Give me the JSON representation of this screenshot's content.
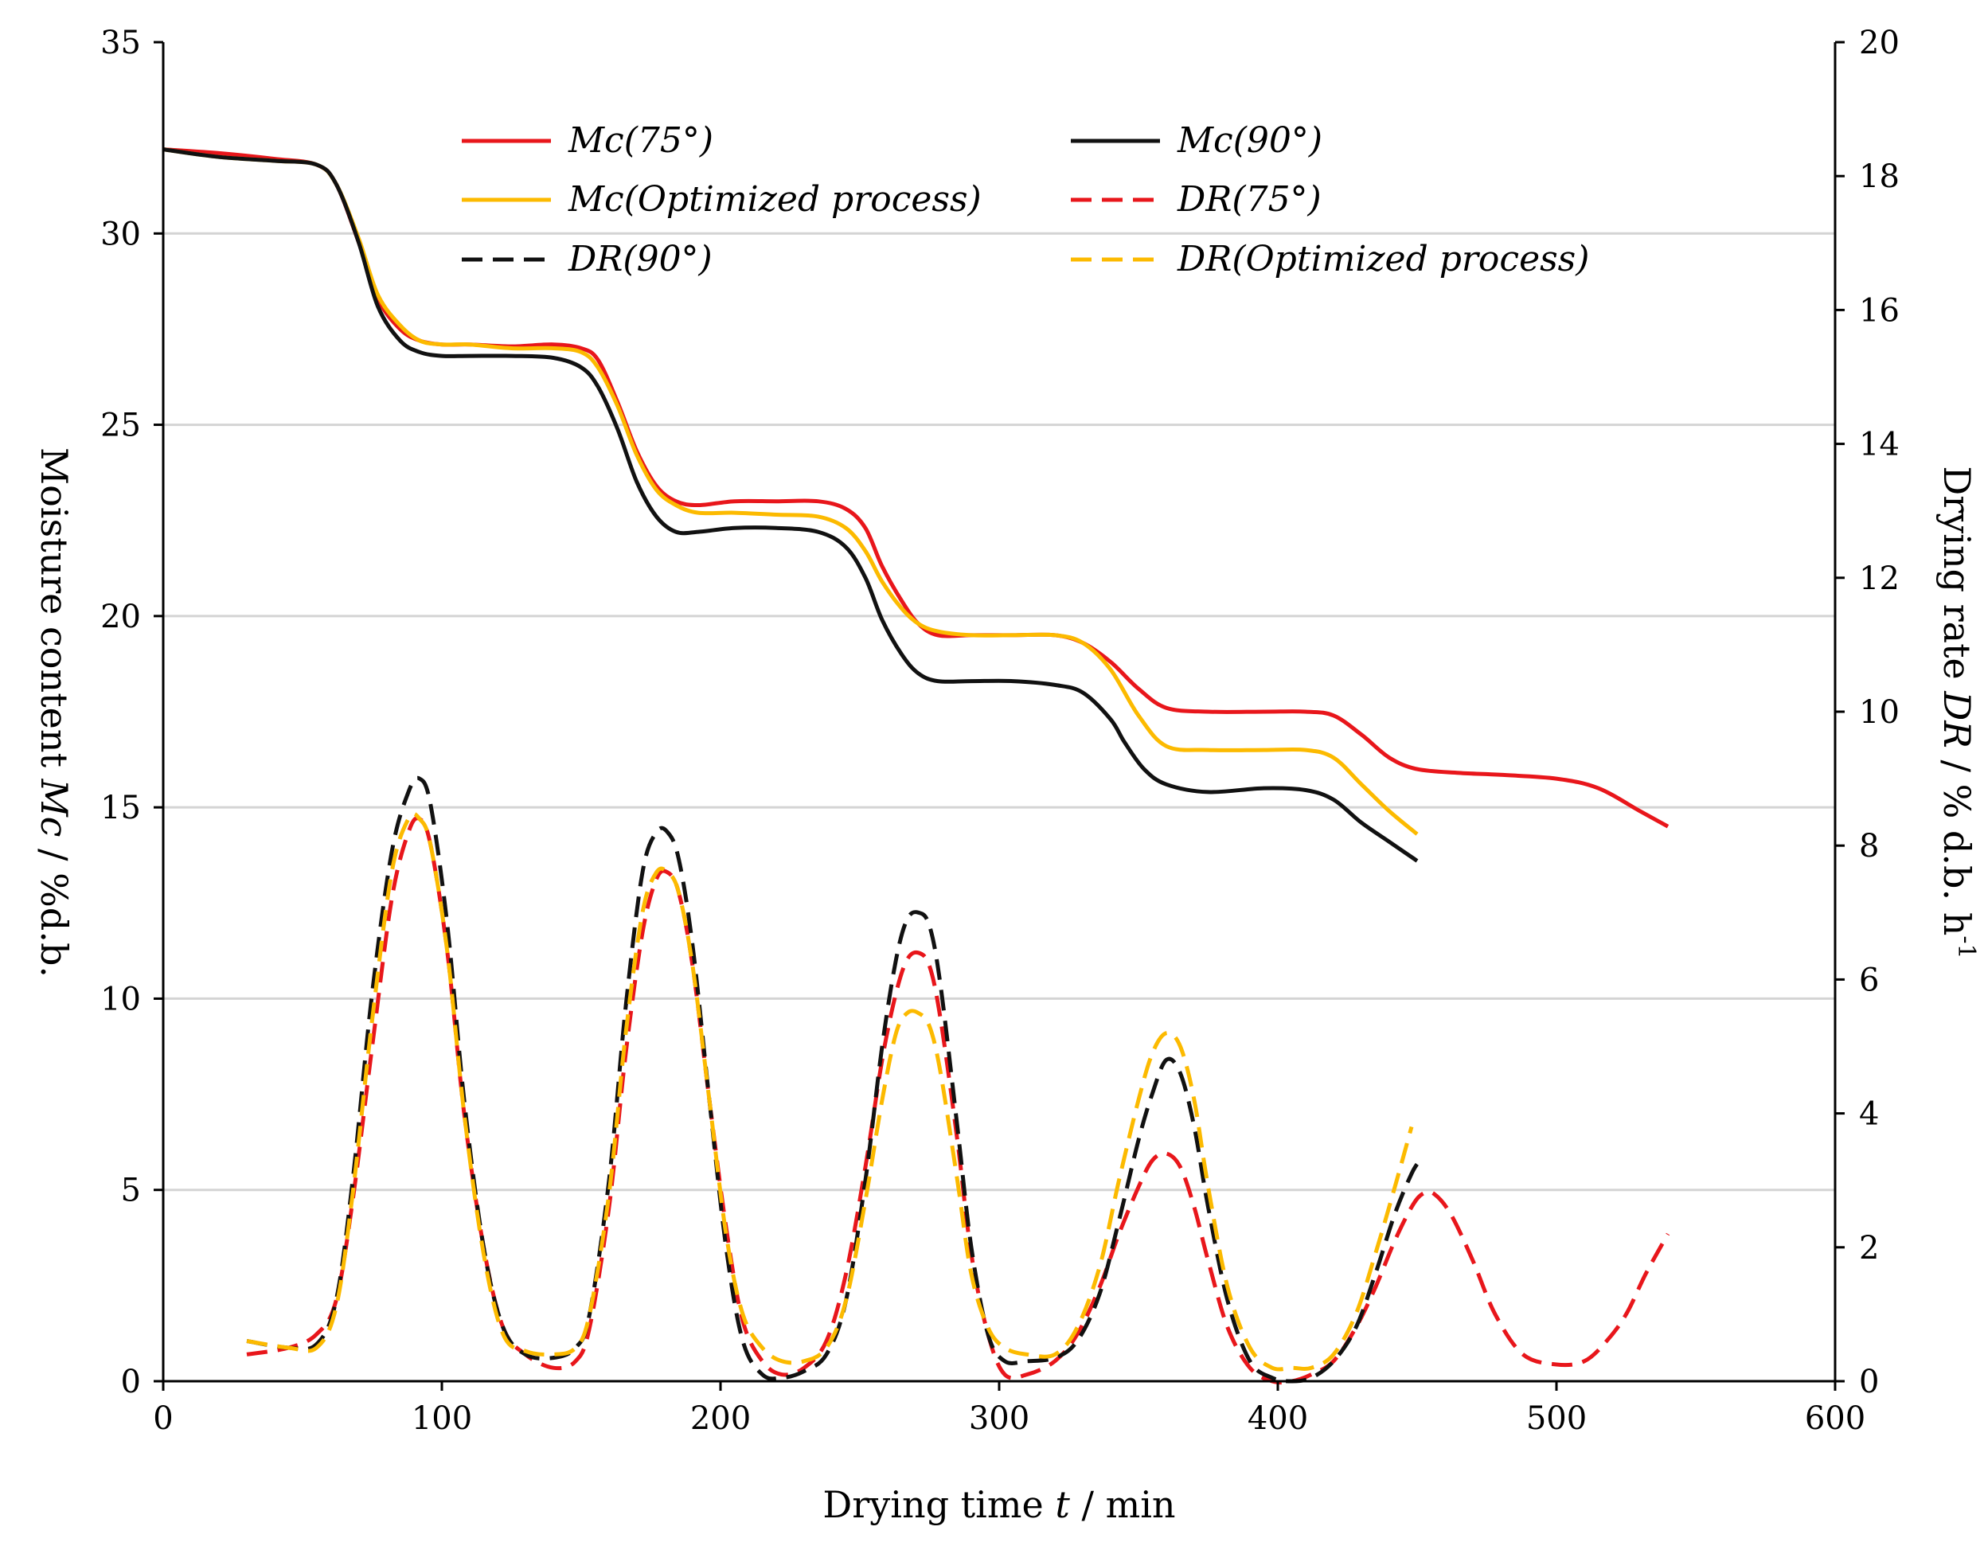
{
  "chart_data": {
    "type": "line",
    "xlabel": "Drying time t / min",
    "xlabel_parts": {
      "pre": "Drying time ",
      "italic": "t",
      "post": " / min"
    },
    "ylabel_left": "Moisture content Mc / %d.b.",
    "ylabel_left_parts": {
      "pre": "Moisture content ",
      "italic": "Mc",
      "post": " / %d.b."
    },
    "ylabel_right": "Drying rate DR / % d.b. h-1",
    "ylabel_right_parts": {
      "pre": "Drying rate ",
      "italic": "DR",
      "post": " / % d.b. h",
      "sup": "-1"
    },
    "xlim": [
      0,
      600
    ],
    "ylim_left": [
      0,
      35
    ],
    "ylim_right": [
      0,
      20
    ],
    "x_ticks": [
      0,
      100,
      200,
      300,
      400,
      500,
      600
    ],
    "y_left_ticks": [
      0,
      5,
      10,
      15,
      20,
      25,
      30,
      35
    ],
    "y_right_ticks": [
      0,
      2,
      4,
      6,
      8,
      10,
      12,
      14,
      16,
      18,
      20
    ],
    "gridlines_left": [
      5,
      10,
      15,
      20,
      25,
      30
    ],
    "legend_position": "top-center",
    "series": [
      {
        "name": "Mc(75°)",
        "axis": "left",
        "color": "#e8161b",
        "dash": "solid",
        "x": [
          0,
          20,
          40,
          55,
          62,
          70,
          77,
          85,
          92,
          100,
          110,
          125,
          140,
          150,
          156,
          163,
          170,
          177,
          184,
          192,
          205,
          220,
          235,
          245,
          252,
          258,
          265,
          271,
          278,
          290,
          305,
          320,
          330,
          340,
          350,
          360,
          375,
          395,
          410,
          420,
          430,
          440,
          450,
          465,
          480,
          500,
          515,
          530,
          540
        ],
        "y": [
          32.2,
          32.1,
          31.95,
          31.8,
          31.3,
          29.8,
          28.3,
          27.5,
          27.2,
          27.1,
          27.1,
          27.05,
          27.1,
          27.0,
          26.7,
          25.6,
          24.3,
          23.4,
          23.0,
          22.9,
          23.0,
          23.0,
          23.0,
          22.8,
          22.3,
          21.3,
          20.4,
          19.8,
          19.5,
          19.5,
          19.5,
          19.5,
          19.3,
          18.8,
          18.1,
          17.6,
          17.5,
          17.5,
          17.5,
          17.4,
          16.9,
          16.3,
          16.0,
          15.9,
          15.85,
          15.75,
          15.5,
          14.9,
          14.5
        ]
      },
      {
        "name": "Mc(90°)",
        "axis": "left",
        "color": "#111111",
        "dash": "solid",
        "x": [
          0,
          20,
          40,
          55,
          62,
          70,
          77,
          85,
          92,
          100,
          110,
          125,
          140,
          150,
          156,
          163,
          170,
          177,
          184,
          192,
          205,
          220,
          235,
          245,
          252,
          258,
          265,
          271,
          278,
          290,
          305,
          320,
          330,
          340,
          345,
          352,
          360,
          375,
          395,
          410,
          420,
          430,
          440,
          450
        ],
        "y": [
          32.2,
          32.0,
          31.9,
          31.8,
          31.3,
          29.8,
          28.1,
          27.2,
          26.9,
          26.8,
          26.8,
          26.8,
          26.75,
          26.5,
          26.0,
          24.9,
          23.5,
          22.6,
          22.2,
          22.2,
          22.3,
          22.3,
          22.2,
          21.8,
          21.0,
          19.9,
          19.0,
          18.5,
          18.3,
          18.3,
          18.3,
          18.2,
          18.0,
          17.3,
          16.7,
          16.0,
          15.6,
          15.4,
          15.5,
          15.45,
          15.2,
          14.6,
          14.1,
          13.6
        ]
      },
      {
        "name": "Mc(Optimized process)",
        "axis": "left",
        "color": "#fcba00",
        "dash": "solid",
        "x": [
          0,
          20,
          40,
          55,
          62,
          70,
          77,
          85,
          92,
          100,
          110,
          125,
          140,
          150,
          156,
          163,
          170,
          177,
          184,
          192,
          205,
          220,
          235,
          245,
          252,
          258,
          265,
          271,
          278,
          290,
          305,
          320,
          330,
          340,
          350,
          360,
          375,
          395,
          410,
          420,
          430,
          440,
          450
        ],
        "y": [
          32.2,
          32.0,
          31.9,
          31.8,
          31.3,
          29.9,
          28.4,
          27.6,
          27.2,
          27.1,
          27.1,
          27.0,
          27.0,
          26.9,
          26.5,
          25.5,
          24.2,
          23.3,
          22.9,
          22.7,
          22.7,
          22.65,
          22.6,
          22.3,
          21.7,
          20.9,
          20.2,
          19.8,
          19.6,
          19.5,
          19.5,
          19.5,
          19.3,
          18.6,
          17.4,
          16.6,
          16.5,
          16.5,
          16.5,
          16.3,
          15.6,
          14.9,
          14.3
        ]
      },
      {
        "name": "DR(75°)",
        "axis": "right",
        "color": "#e8161b",
        "dash": "dashed",
        "x": [
          30,
          45,
          55,
          62,
          68,
          75,
          82,
          88,
          92,
          96,
          102,
          108,
          115,
          122,
          130,
          140,
          148,
          153,
          160,
          166,
          172,
          177,
          181,
          185,
          190,
          196,
          202,
          208,
          215,
          222,
          230,
          238,
          245,
          252,
          258,
          263,
          267,
          271,
          275,
          279,
          285,
          290,
          296,
          302,
          310,
          320,
          328,
          336,
          343,
          350,
          355,
          360,
          365,
          370,
          375,
          382,
          390,
          398,
          405,
          412,
          420,
          428,
          435,
          442,
          448,
          452,
          456,
          462,
          470,
          478,
          488,
          500,
          510,
          518,
          525,
          532,
          540
        ],
        "y": [
          0.4,
          0.5,
          0.7,
          1.2,
          2.7,
          5.0,
          7.2,
          8.2,
          8.4,
          8.0,
          6.4,
          4.0,
          2.0,
          0.8,
          0.4,
          0.2,
          0.3,
          0.8,
          2.6,
          4.9,
          6.7,
          7.5,
          7.6,
          7.3,
          6.2,
          4.2,
          2.3,
          0.9,
          0.3,
          0.1,
          0.2,
          0.6,
          1.6,
          3.2,
          4.8,
          5.8,
          6.3,
          6.4,
          6.2,
          5.4,
          3.6,
          1.9,
          0.7,
          0.1,
          0.1,
          0.3,
          0.7,
          1.4,
          2.2,
          2.9,
          3.3,
          3.4,
          3.2,
          2.6,
          1.8,
          0.8,
          0.2,
          0.0,
          0.0,
          0.1,
          0.3,
          0.8,
          1.4,
          2.1,
          2.6,
          2.8,
          2.8,
          2.5,
          1.8,
          1.0,
          0.4,
          0.25,
          0.3,
          0.6,
          1.0,
          1.6,
          2.2
        ]
      },
      {
        "name": "DR(90°)",
        "axis": "right",
        "color": "#111111",
        "dash": "dashed",
        "x": [
          30,
          45,
          55,
          62,
          68,
          75,
          82,
          88,
          92,
          96,
          102,
          108,
          115,
          122,
          130,
          140,
          148,
          153,
          160,
          166,
          172,
          177,
          181,
          185,
          190,
          196,
          202,
          208,
          215,
          222,
          230,
          238,
          245,
          252,
          258,
          263,
          267,
          271,
          275,
          279,
          285,
          290,
          296,
          302,
          310,
          320,
          328,
          336,
          343,
          350,
          355,
          360,
          365,
          370,
          375,
          382,
          390,
          398,
          405,
          412,
          420,
          428,
          435,
          442,
          448,
          451
        ],
        "y": [
          0.6,
          0.5,
          0.55,
          1.2,
          3.0,
          5.8,
          7.9,
          8.8,
          9.0,
          8.6,
          6.8,
          4.2,
          2.0,
          0.8,
          0.4,
          0.35,
          0.5,
          1.0,
          3.0,
          5.6,
          7.6,
          8.2,
          8.2,
          7.8,
          6.5,
          4.2,
          2.0,
          0.6,
          0.1,
          0.05,
          0.15,
          0.4,
          1.2,
          3.0,
          5.0,
          6.3,
          6.9,
          7.0,
          6.8,
          5.9,
          3.8,
          2.0,
          0.7,
          0.3,
          0.3,
          0.35,
          0.6,
          1.3,
          2.4,
          3.6,
          4.3,
          4.8,
          4.6,
          3.8,
          2.6,
          1.2,
          0.3,
          0.05,
          0.0,
          0.05,
          0.3,
          0.8,
          1.6,
          2.5,
          3.1,
          3.3
        ]
      },
      {
        "name": "DR(Optimized process)",
        "axis": "right",
        "color": "#fcba00",
        "dash": "dashed",
        "x": [
          30,
          45,
          55,
          62,
          68,
          75,
          82,
          88,
          92,
          96,
          102,
          108,
          115,
          122,
          130,
          140,
          148,
          153,
          160,
          166,
          172,
          177,
          181,
          185,
          190,
          196,
          202,
          208,
          215,
          222,
          230,
          238,
          245,
          252,
          258,
          263,
          267,
          271,
          275,
          279,
          285,
          290,
          296,
          302,
          310,
          320,
          328,
          336,
          343,
          350,
          355,
          360,
          365,
          370,
          375,
          382,
          390,
          398,
          405,
          412,
          420,
          428,
          435,
          442,
          448
        ],
        "y": [
          0.6,
          0.5,
          0.5,
          1.1,
          2.8,
          5.4,
          7.6,
          8.4,
          8.4,
          8.0,
          6.4,
          4.0,
          1.9,
          0.7,
          0.45,
          0.4,
          0.5,
          1.0,
          2.8,
          5.2,
          7.0,
          7.6,
          7.6,
          7.3,
          6.2,
          4.2,
          2.2,
          1.0,
          0.5,
          0.3,
          0.3,
          0.5,
          1.2,
          2.7,
          4.2,
          5.2,
          5.5,
          5.5,
          5.3,
          4.6,
          3.0,
          1.6,
          0.8,
          0.5,
          0.4,
          0.4,
          0.8,
          1.7,
          3.0,
          4.2,
          4.9,
          5.2,
          5.0,
          4.2,
          2.9,
          1.4,
          0.5,
          0.2,
          0.2,
          0.2,
          0.4,
          1.0,
          1.9,
          2.9,
          3.8
        ]
      }
    ]
  }
}
